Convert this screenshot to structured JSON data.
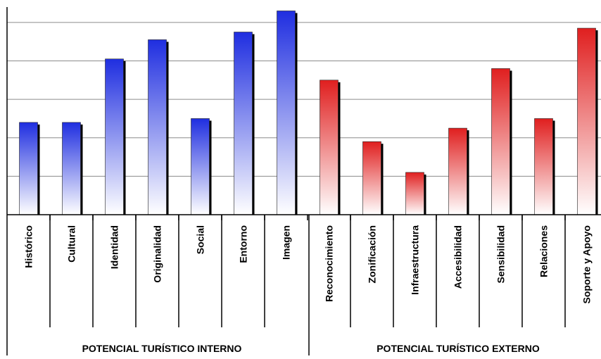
{
  "chart_data": {
    "type": "bar",
    "title": "",
    "xlabel": "",
    "ylabel": "",
    "ylim": [
      0,
      5.4
    ],
    "grid": true,
    "legend": "none",
    "groups": [
      {
        "label": "POTENCIAL TURÍSTICO INTERNO",
        "color": "#1f2ee0",
        "categories": [
          "Histórico",
          "Cultural",
          "Identidad",
          "Originalidad",
          "Social",
          "Entorno",
          "Imagen"
        ],
        "values": [
          2.4,
          2.4,
          4.05,
          4.55,
          2.5,
          4.75,
          5.3
        ]
      },
      {
        "label": "POTENCIAL TURÍSTICO EXTERNO",
        "color": "#e01f1f",
        "categories": [
          "Reconocimiento",
          "Zonificación",
          "Infraestructura",
          "Accesibilidad",
          "Sensibilidad",
          "Relaciones",
          "Soporte y Apoyo"
        ],
        "values": [
          3.5,
          1.9,
          1.1,
          2.25,
          3.8,
          2.5,
          4.85
        ]
      }
    ]
  }
}
